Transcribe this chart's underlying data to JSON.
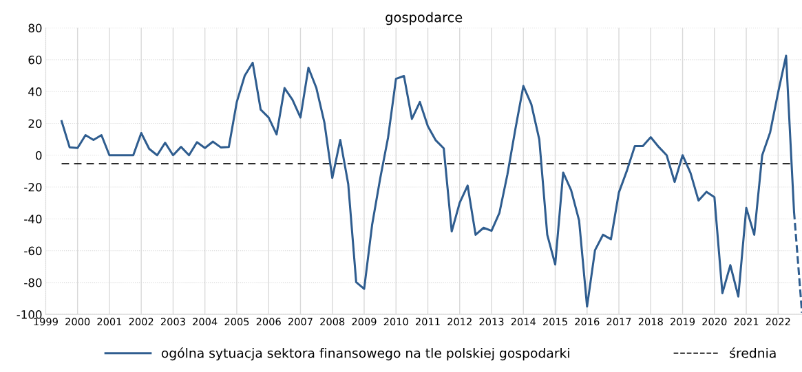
{
  "chart_data": {
    "type": "line",
    "title": "gospodarce",
    "x": [
      1999.5,
      1999.75,
      2000,
      2000.25,
      2000.5,
      2000.75,
      2001,
      2001.25,
      2001.5,
      2001.75,
      2002,
      2002.25,
      2002.5,
      2002.75,
      2003,
      2003.25,
      2003.5,
      2003.75,
      2004,
      2004.25,
      2004.5,
      2004.75,
      2005,
      2005.25,
      2005.5,
      2005.75,
      2006,
      2006.25,
      2006.5,
      2006.75,
      2007,
      2007.25,
      2007.5,
      2007.75,
      2008,
      2008.25,
      2008.5,
      2008.75,
      2009,
      2009.25,
      2009.5,
      2009.75,
      2010,
      2010.25,
      2010.5,
      2010.75,
      2011,
      2011.25,
      2011.5,
      2011.75,
      2012,
      2012.25,
      2012.5,
      2012.75,
      2013,
      2013.25,
      2013.5,
      2013.75,
      2014,
      2014.25,
      2014.5,
      2014.75,
      2015,
      2015.25,
      2015.5,
      2015.75,
      2016,
      2016.25,
      2016.5,
      2016.75,
      2017,
      2017.25,
      2017.5,
      2017.75,
      2018,
      2018.25,
      2018.5,
      2018.75,
      2019,
      2019.25,
      2019.5,
      2019.75,
      2020,
      2020.25,
      2020.5,
      2020.75,
      2021,
      2021.25,
      2021.5,
      2021.75,
      2022,
      2022.25,
      2022.5
    ],
    "series": [
      {
        "name": "ogólna sytuacja sektora finansowego na tle polskiej gospodarki",
        "color": "#2f5d8f",
        "line_style": "solid",
        "values": [
          21.4,
          5.0,
          4.5,
          12.6,
          9.6,
          12.6,
          0,
          0,
          0,
          0,
          13.9,
          4,
          0,
          7.8,
          0,
          5.2,
          0,
          8.2,
          4.5,
          8.5,
          4.9,
          5.2,
          33.4,
          50,
          58.1,
          28.7,
          23.7,
          13.1,
          42.2,
          34.8,
          23.7,
          55,
          42.2,
          20.7,
          -14.3,
          9.6,
          -18.1,
          -79.8,
          -84,
          -43.8,
          -15,
          11,
          48,
          49.8,
          22.8,
          33.4,
          18.2,
          9.3,
          4.3,
          -47.9,
          -29.9,
          -19.1,
          -50,
          -45.6,
          -47.5,
          -36.1,
          -12,
          16.5,
          43.5,
          32,
          9.9,
          -50,
          -68.7,
          -10.9,
          -22,
          -41,
          -95.1,
          -59.7,
          -50,
          -52.8,
          -23.4,
          -9.8,
          5.7,
          5.7,
          11.3,
          5.2,
          0,
          -16.8,
          0,
          -11.2,
          -28.5,
          -23,
          -26.4,
          -86.7,
          -69.1,
          -88.8,
          -33.1,
          -50,
          0,
          14.4,
          39.4,
          62.5,
          -35.5
        ]
      },
      {
        "color": "#2f5d8f",
        "line_style": "dashed",
        "x": [
          2022.5,
          2022.75
        ],
        "values": [
          -35.5,
          -99
        ]
      }
    ],
    "ref_lines": [
      {
        "axis": "y",
        "value": -5.4,
        "label": "średnia",
        "color": "#000000",
        "line_style": "dashed"
      }
    ],
    "xlim": [
      1999,
      2022.75
    ],
    "xticks": [
      1999,
      2000,
      2001,
      2002,
      2003,
      2004,
      2005,
      2006,
      2007,
      2008,
      2009,
      2010,
      2011,
      2012,
      2013,
      2014,
      2015,
      2016,
      2017,
      2018,
      2019,
      2020,
      2021,
      2022
    ],
    "ylim": [
      -100,
      80
    ],
    "yticks": [
      -100,
      -80,
      -60,
      -40,
      -20,
      0,
      20,
      40,
      60,
      80
    ],
    "grid": true,
    "legend": "bottom",
    "marker": "none"
  }
}
